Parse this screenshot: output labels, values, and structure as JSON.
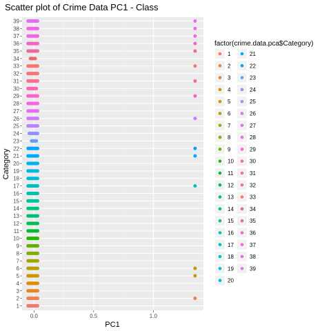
{
  "chart_data": {
    "type": "scatter",
    "title": "Scatter plot of Crime Data PC1 - Class",
    "xlabel": "PC1",
    "ylabel": "Category",
    "xlim": [
      -0.1,
      1.42
    ],
    "x_ticks": [
      0.0,
      0.5,
      1.0
    ],
    "x_tick_labels": [
      "0.0",
      "0.5",
      "1.0"
    ],
    "categories": [
      "1",
      "2",
      "3",
      "4",
      "5",
      "6",
      "7",
      "8",
      "9",
      "10",
      "11",
      "12",
      "13",
      "14",
      "15",
      "16",
      "17",
      "18",
      "19",
      "20",
      "21",
      "22",
      "23",
      "24",
      "25",
      "26",
      "27",
      "28",
      "29",
      "30",
      "31",
      "32",
      "33",
      "34",
      "35",
      "36",
      "37",
      "38",
      "39"
    ],
    "grid": true,
    "legend_title": "factor(crime.data.pca$Category)",
    "legend_position": "right",
    "colors": [
      "#F8766D",
      "#F17E4F",
      "#E7851E",
      "#DA8E00",
      "#CA9700",
      "#B79F00",
      "#A0A600",
      "#85AC00",
      "#62B200",
      "#24B700",
      "#00BA38",
      "#00BD56",
      "#00BF70",
      "#00C087",
      "#00C19C",
      "#00C1B0",
      "#00BFC4",
      "#00BCD6",
      "#00B8E7",
      "#00B2F3",
      "#00ABFD",
      "#00A3FF",
      "#619CFF",
      "#9590FF",
      "#B983FF",
      "#D376FF",
      "#E76BF3",
      "#F564E3",
      "#FF61CC",
      "#FF64B0",
      "#FF6C91",
      "#FC717F",
      "#F8766D",
      "#E86B6B",
      "#EA6A9F",
      "#F066C6",
      "#F564E3",
      "#F265E6",
      "#E86BF7"
    ],
    "series": [
      {
        "category": "1",
        "x_range": [
          -0.05,
          0.03
        ],
        "outliers": []
      },
      {
        "category": "2",
        "x_range": [
          -0.05,
          0.03
        ],
        "outliers": [
          1.35
        ]
      },
      {
        "category": "3",
        "x_range": [
          -0.05,
          0.03
        ],
        "outliers": []
      },
      {
        "category": "4",
        "x_range": [
          -0.05,
          0.03
        ],
        "outliers": []
      },
      {
        "category": "5",
        "x_range": [
          -0.05,
          0.03
        ],
        "outliers": [
          1.35
        ]
      },
      {
        "category": "6",
        "x_range": [
          -0.05,
          0.03
        ],
        "outliers": [
          1.35
        ]
      },
      {
        "category": "7",
        "x_range": [
          -0.05,
          0.03
        ],
        "outliers": []
      },
      {
        "category": "8",
        "x_range": [
          -0.05,
          0.03
        ],
        "outliers": []
      },
      {
        "category": "9",
        "x_range": [
          -0.05,
          0.03
        ],
        "outliers": []
      },
      {
        "category": "10",
        "x_range": [
          -0.05,
          0.03
        ],
        "outliers": []
      },
      {
        "category": "11",
        "x_range": [
          -0.05,
          0.03
        ],
        "outliers": []
      },
      {
        "category": "12",
        "x_range": [
          -0.05,
          0.03
        ],
        "outliers": []
      },
      {
        "category": "13",
        "x_range": [
          -0.05,
          0.03
        ],
        "outliers": []
      },
      {
        "category": "14",
        "x_range": [
          -0.05,
          0.03
        ],
        "outliers": []
      },
      {
        "category": "15",
        "x_range": [
          -0.05,
          0.03
        ],
        "outliers": []
      },
      {
        "category": "16",
        "x_range": [
          -0.05,
          0.03
        ],
        "outliers": []
      },
      {
        "category": "17",
        "x_range": [
          -0.05,
          0.03
        ],
        "outliers": [
          1.35
        ]
      },
      {
        "category": "18",
        "x_range": [
          -0.05,
          0.03
        ],
        "outliers": []
      },
      {
        "category": "19",
        "x_range": [
          -0.05,
          0.03
        ],
        "outliers": []
      },
      {
        "category": "20",
        "x_range": [
          -0.05,
          0.03
        ],
        "outliers": []
      },
      {
        "category": "21",
        "x_range": [
          -0.05,
          0.03
        ],
        "outliers": [
          1.35
        ]
      },
      {
        "category": "22",
        "x_range": [
          -0.05,
          0.03
        ],
        "outliers": [
          1.35
        ]
      },
      {
        "category": "23",
        "x_range": [
          -0.02,
          0.02
        ],
        "outliers": []
      },
      {
        "category": "24",
        "x_range": [
          -0.04,
          0.03
        ],
        "outliers": []
      },
      {
        "category": "25",
        "x_range": [
          -0.05,
          0.03
        ],
        "outliers": []
      },
      {
        "category": "26",
        "x_range": [
          -0.05,
          0.03
        ],
        "outliers": [
          1.35
        ]
      },
      {
        "category": "27",
        "x_range": [
          -0.05,
          0.03
        ],
        "outliers": []
      },
      {
        "category": "28",
        "x_range": [
          -0.05,
          0.03
        ],
        "outliers": []
      },
      {
        "category": "29",
        "x_range": [
          -0.05,
          0.03
        ],
        "outliers": [
          1.35
        ]
      },
      {
        "category": "30",
        "x_range": [
          -0.05,
          0.02
        ],
        "outliers": []
      },
      {
        "category": "31",
        "x_range": [
          -0.05,
          0.03
        ],
        "outliers": [
          1.35
        ]
      },
      {
        "category": "32",
        "x_range": [
          -0.05,
          0.03
        ],
        "outliers": []
      },
      {
        "category": "33",
        "x_range": [
          -0.05,
          0.03
        ],
        "outliers": [
          1.35
        ]
      },
      {
        "category": "34",
        "x_range": [
          -0.03,
          0.01
        ],
        "outliers": []
      },
      {
        "category": "35",
        "x_range": [
          -0.05,
          0.03
        ],
        "outliers": [
          1.35
        ]
      },
      {
        "category": "36",
        "x_range": [
          -0.05,
          0.03
        ],
        "outliers": [
          1.35
        ]
      },
      {
        "category": "37",
        "x_range": [
          -0.05,
          0.03
        ],
        "outliers": [
          1.35
        ]
      },
      {
        "category": "38",
        "x_range": [
          -0.05,
          0.03
        ],
        "outliers": [
          1.35
        ]
      },
      {
        "category": "39",
        "x_range": [
          -0.05,
          0.03
        ],
        "outliers": [
          1.35
        ]
      }
    ]
  }
}
